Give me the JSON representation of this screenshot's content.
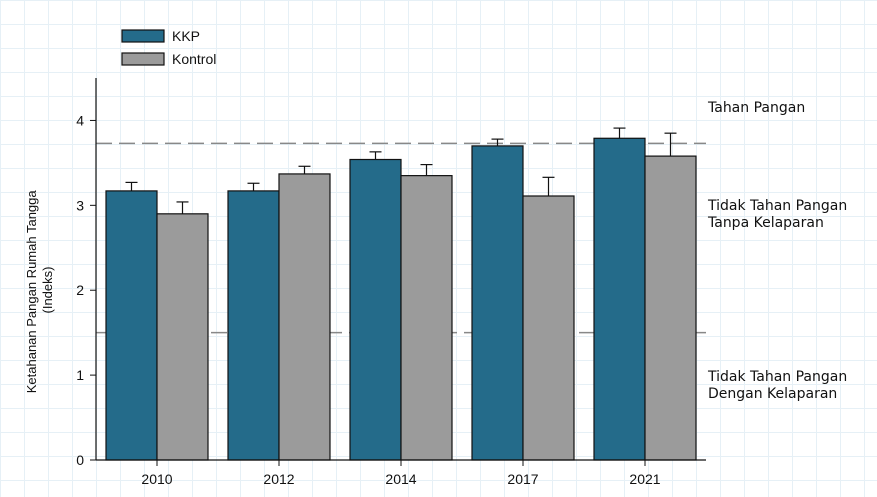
{
  "chart_data": {
    "type": "bar",
    "categories": [
      "2010",
      "2012",
      "2014",
      "2017",
      "2021"
    ],
    "series": [
      {
        "name": "KKP",
        "color": "#246b8a",
        "values": [
          3.17,
          3.17,
          3.54,
          3.7,
          3.79
        ],
        "error": [
          0.1,
          0.09,
          0.09,
          0.08,
          0.12
        ]
      },
      {
        "name": "Kontrol",
        "color": "#9b9b9b",
        "values": [
          2.9,
          3.37,
          3.35,
          3.11,
          3.58
        ],
        "error": [
          0.14,
          0.09,
          0.13,
          0.22,
          0.27
        ]
      }
    ],
    "ylabel_line1": "Ketahanan Pangan Rumah Tangga",
    "ylabel_line2": "(Indeks)",
    "ylim": [
      0,
      4.5
    ],
    "yticks": [
      "0",
      "1",
      "2",
      "3",
      "4"
    ],
    "thresholds": [
      3.73,
      1.5
    ],
    "threshold_color": "#888888",
    "regions": [
      {
        "lines": [
          "Tahan Pangan"
        ]
      },
      {
        "lines": [
          "Tidak Tahan Pangan",
          "Tanpa Kelaparan"
        ]
      },
      {
        "lines": [
          "Tidak Tahan Pangan",
          "Dengan Kelaparan"
        ]
      }
    ],
    "legend_position": "top-left",
    "grid": false
  }
}
